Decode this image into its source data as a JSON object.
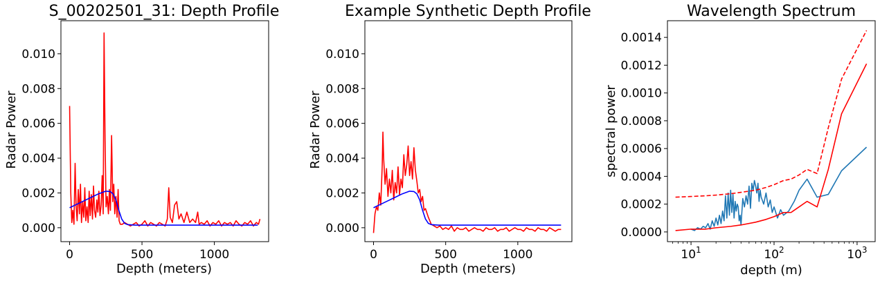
{
  "chart_data": [
    {
      "type": "line",
      "title": "S_00202501_31: Depth Profile",
      "xlabel": "Depth (meters)",
      "ylabel": "Radar Power",
      "xlim": [
        -60,
        1375
      ],
      "ylim": [
        -0.0008,
        0.0119
      ],
      "xticks": [
        0,
        500,
        1000
      ],
      "xtick_labels": [
        "0",
        "500",
        "1000"
      ],
      "yticks": [
        0.0,
        0.002,
        0.004,
        0.006,
        0.008,
        0.01
      ],
      "ytick_labels": [
        "0.000",
        "0.002",
        "0.004",
        "0.006",
        "0.008",
        "0.010"
      ],
      "grid": false,
      "series": [
        {
          "color": "#ff0000",
          "x": [
            0,
            8,
            15,
            22,
            30,
            38,
            45,
            52,
            60,
            68,
            75,
            82,
            90,
            98,
            105,
            112,
            120,
            128,
            135,
            142,
            150,
            158,
            165,
            172,
            180,
            188,
            195,
            202,
            210,
            218,
            225,
            232,
            238,
            245,
            252,
            260,
            268,
            275,
            282,
            290,
            298,
            305,
            312,
            320,
            328,
            335,
            342,
            350,
            365,
            380,
            400,
            420,
            440,
            460,
            480,
            500,
            520,
            540,
            560,
            580,
            600,
            620,
            640,
            660,
            675,
            685,
            695,
            710,
            725,
            740,
            755,
            770,
            790,
            810,
            830,
            850,
            870,
            885,
            895,
            910,
            930,
            950,
            970,
            990,
            1010,
            1030,
            1050,
            1070,
            1090,
            1110,
            1130,
            1150,
            1170,
            1190,
            1210,
            1230,
            1250,
            1270,
            1290,
            1305,
            1315
          ],
          "values": [
            0.007,
            0.002,
            0.0003,
            0.001,
            0.0002,
            0.0037,
            0.0012,
            0.0004,
            0.0022,
            0.0008,
            0.0025,
            0.0003,
            0.0015,
            0.0006,
            0.0023,
            0.0004,
            0.0012,
            0.0003,
            0.0021,
            0.0007,
            0.0019,
            0.0005,
            0.0024,
            0.001,
            0.0006,
            0.0016,
            0.0009,
            0.0021,
            0.0007,
            0.0013,
            0.003,
            0.0008,
            0.0112,
            0.005,
            0.0012,
            0.0018,
            0.0008,
            0.0022,
            0.001,
            0.0053,
            0.0015,
            0.0025,
            0.0008,
            0.0018,
            0.0006,
            0.0022,
            0.0004,
            0.0002,
            0.0002,
            0.0003,
            0.0002,
            0.0001,
            0.0002,
            0.0003,
            0.0001,
            0.0002,
            0.0004,
            0.0001,
            0.0003,
            0.0002,
            0.0001,
            0.0003,
            0.0002,
            0.0001,
            0.0005,
            0.0023,
            0.0006,
            0.0003,
            0.0013,
            0.0015,
            0.0005,
            0.0008,
            0.0003,
            0.0009,
            0.0003,
            0.0005,
            0.0003,
            0.0009,
            0.0002,
            0.0003,
            0.0002,
            0.0004,
            0.0001,
            0.0003,
            0.0002,
            0.0004,
            0.0001,
            0.0003,
            0.0002,
            0.0003,
            0.0001,
            0.0004,
            0.0002,
            0.0001,
            0.0003,
            0.0002,
            0.0004,
            0.0001,
            0.0003,
            0.0002,
            0.0005
          ]
        },
        {
          "color": "#0000ff",
          "x": [
            0,
            50,
            100,
            150,
            200,
            250,
            280,
            300,
            320,
            340,
            360,
            380,
            400,
            450,
            500,
            600,
            700,
            800,
            900,
            1000,
            1100,
            1200,
            1300
          ],
          "values": [
            0.00115,
            0.00135,
            0.00155,
            0.00175,
            0.00195,
            0.0021,
            0.00208,
            0.00195,
            0.0016,
            0.001,
            0.0005,
            0.00025,
            0.00018,
            0.00015,
            0.00015,
            0.00015,
            0.00015,
            0.00015,
            0.00015,
            0.00015,
            0.00015,
            0.00015,
            0.00015
          ]
        }
      ]
    },
    {
      "type": "line",
      "title": "Example Synthetic Depth Profile",
      "xlabel": "Depth (meters)",
      "ylabel": "Radar Power",
      "xlim": [
        -60,
        1375
      ],
      "ylim": [
        -0.0008,
        0.0119
      ],
      "xticks": [
        0,
        500,
        1000
      ],
      "xtick_labels": [
        "0",
        "500",
        "1000"
      ],
      "yticks": [
        0.0,
        0.002,
        0.004,
        0.006,
        0.008,
        0.01
      ],
      "ytick_labels": [
        "0.000",
        "0.002",
        "0.004",
        "0.006",
        "0.008",
        "0.010"
      ],
      "grid": false,
      "series": [
        {
          "color": "#ff0000",
          "x": [
            0,
            10,
            20,
            30,
            40,
            50,
            60,
            65,
            70,
            80,
            90,
            100,
            110,
            120,
            130,
            140,
            150,
            160,
            170,
            180,
            190,
            200,
            210,
            220,
            230,
            240,
            250,
            260,
            270,
            280,
            290,
            300,
            310,
            320,
            330,
            340,
            350,
            360,
            380,
            400,
            420,
            440,
            460,
            480,
            500,
            520,
            540,
            560,
            580,
            600,
            620,
            640,
            660,
            680,
            700,
            720,
            740,
            760,
            780,
            800,
            820,
            840,
            860,
            880,
            900,
            920,
            940,
            960,
            980,
            1000,
            1020,
            1040,
            1060,
            1080,
            1100,
            1120,
            1140,
            1160,
            1180,
            1200,
            1220,
            1240,
            1260,
            1280,
            1300
          ],
          "values": [
            -0.0003,
            0.0008,
            0.0012,
            0.001,
            0.002,
            0.0013,
            0.0035,
            0.0055,
            0.004,
            0.0025,
            0.0034,
            0.0018,
            0.0028,
            0.002,
            0.0033,
            0.0016,
            0.0026,
            0.002,
            0.0035,
            0.0019,
            0.0028,
            0.0023,
            0.0042,
            0.003,
            0.0036,
            0.0047,
            0.003,
            0.0038,
            0.0028,
            0.0046,
            0.0033,
            0.0027,
            0.002,
            0.0022,
            0.0015,
            0.0018,
            0.001,
            0.0011,
            0.0006,
            0.0002,
            0.0001,
            0.0,
            0.0001,
            -0.0001,
            0.0,
            -0.0001,
            0.0001,
            -0.0002,
            0.0,
            -0.0001,
            -0.0001,
            0.0,
            -0.0002,
            -0.0001,
            0.0,
            -0.0001,
            -0.0001,
            -0.0002,
            0.0,
            -0.0001,
            -0.0001,
            0.0,
            -0.0002,
            -0.0001,
            -0.0001,
            0.0,
            -0.0002,
            -0.0001,
            0.0,
            -0.0001,
            -0.0001,
            -0.0002,
            0.0,
            -0.0001,
            -0.0001,
            -0.0002,
            0.0,
            -0.0001,
            -0.0001,
            -0.0002,
            0.0,
            -0.0001,
            -0.0002,
            -0.0001,
            -0.0001
          ]
        },
        {
          "color": "#0000ff",
          "x": [
            0,
            50,
            100,
            150,
            200,
            250,
            280,
            300,
            320,
            340,
            360,
            380,
            400,
            450,
            500,
            600,
            700,
            800,
            900,
            1000,
            1100,
            1200,
            1300
          ],
          "values": [
            0.00115,
            0.00135,
            0.00155,
            0.00175,
            0.00195,
            0.0021,
            0.00208,
            0.00195,
            0.0016,
            0.001,
            0.0005,
            0.00025,
            0.00018,
            0.00015,
            0.00015,
            0.00015,
            0.00015,
            0.00015,
            0.00015,
            0.00015,
            0.00015,
            0.00015,
            0.00015
          ]
        }
      ]
    },
    {
      "type": "line",
      "title": "Wavelength Spectrum",
      "xlabel": "depth (m)",
      "ylabel": "spectral power",
      "xscale": "log",
      "xlim": [
        5.2,
        1650
      ],
      "ylim": [
        -7e-05,
        0.00152
      ],
      "xticks": [
        10,
        100,
        1000
      ],
      "xtick_labels": [
        {
          "base": "10",
          "exp": "1"
        },
        {
          "base": "10",
          "exp": "2"
        },
        {
          "base": "10",
          "exp": "3"
        }
      ],
      "yticks": [
        0.0,
        0.0002,
        0.0004,
        0.0006,
        0.0008,
        0.001,
        0.0012,
        0.0014
      ],
      "ytick_labels": [
        "0.0000",
        "0.0002",
        "0.0004",
        "0.0006",
        "0.0008",
        "0.0010",
        "0.0012",
        "0.0014"
      ],
      "grid": false,
      "series": [
        {
          "color": "#1f77b4",
          "style": "solid",
          "x": [
            10,
            11,
            12,
            13,
            14,
            15,
            16,
            17,
            18,
            19,
            20,
            21,
            22,
            23,
            24,
            25,
            26,
            27,
            28,
            29,
            30,
            31,
            32,
            33,
            34,
            35,
            36,
            37,
            38,
            39,
            40,
            42,
            44,
            46,
            48,
            50,
            52,
            54,
            56,
            58,
            60,
            62,
            64,
            66,
            68,
            70,
            75,
            80,
            85,
            90,
            95,
            100,
            110,
            120,
            130,
            150,
            175,
            200,
            250,
            330,
            450,
            650,
            1300
          ],
          "values": [
            2e-05,
            1e-05,
            3e-05,
            2e-05,
            4e-05,
            3e-05,
            6e-05,
            2e-05,
            8e-05,
            4e-05,
            0.0001,
            5e-05,
            0.00012,
            6e-05,
            0.00015,
            8e-05,
            0.00026,
            0.0001,
            0.00028,
            0.00012,
            0.0003,
            0.00014,
            0.00027,
            0.0001,
            0.00022,
            0.00015,
            0.0002,
            0.00018,
            8e-05,
            0.00012,
            5e-05,
            0.00024,
            0.00018,
            0.00026,
            0.0002,
            0.00033,
            0.00017,
            0.00035,
            0.0003,
            0.00037,
            0.00033,
            0.00028,
            0.00035,
            0.00022,
            0.0003,
            0.00025,
            0.0002,
            0.00028,
            0.00018,
            0.00023,
            0.00014,
            0.00018,
            0.0001,
            0.00016,
            0.00012,
            0.00015,
            0.00022,
            0.0003,
            0.00038,
            0.00025,
            0.00027,
            0.00044,
            0.00061
          ]
        },
        {
          "color": "#ff0000",
          "style": "solid",
          "x": [
            6.5,
            10,
            15,
            20,
            30,
            40,
            60,
            80,
            100,
            130,
            160,
            200,
            250,
            330,
            450,
            650,
            1300
          ],
          "values": [
            1e-05,
            2e-05,
            2e-05,
            3e-05,
            4e-05,
            5e-05,
            7e-05,
            9e-05,
            0.00011,
            0.00014,
            0.00014,
            0.00018,
            0.00022,
            0.00018,
            0.00045,
            0.00085,
            0.00121
          ]
        },
        {
          "color": "#ff0000",
          "style": "dashed",
          "x": [
            6.5,
            10,
            15,
            20,
            30,
            40,
            60,
            80,
            100,
            130,
            160,
            200,
            250,
            330,
            450,
            650,
            1300
          ],
          "values": [
            0.00025,
            0.000255,
            0.00026,
            0.000265,
            0.000275,
            0.000285,
            0.0003,
            0.00032,
            0.00034,
            0.00037,
            0.00038,
            0.00041,
            0.00045,
            0.00042,
            0.00075,
            0.0011,
            0.00145
          ]
        }
      ]
    }
  ]
}
